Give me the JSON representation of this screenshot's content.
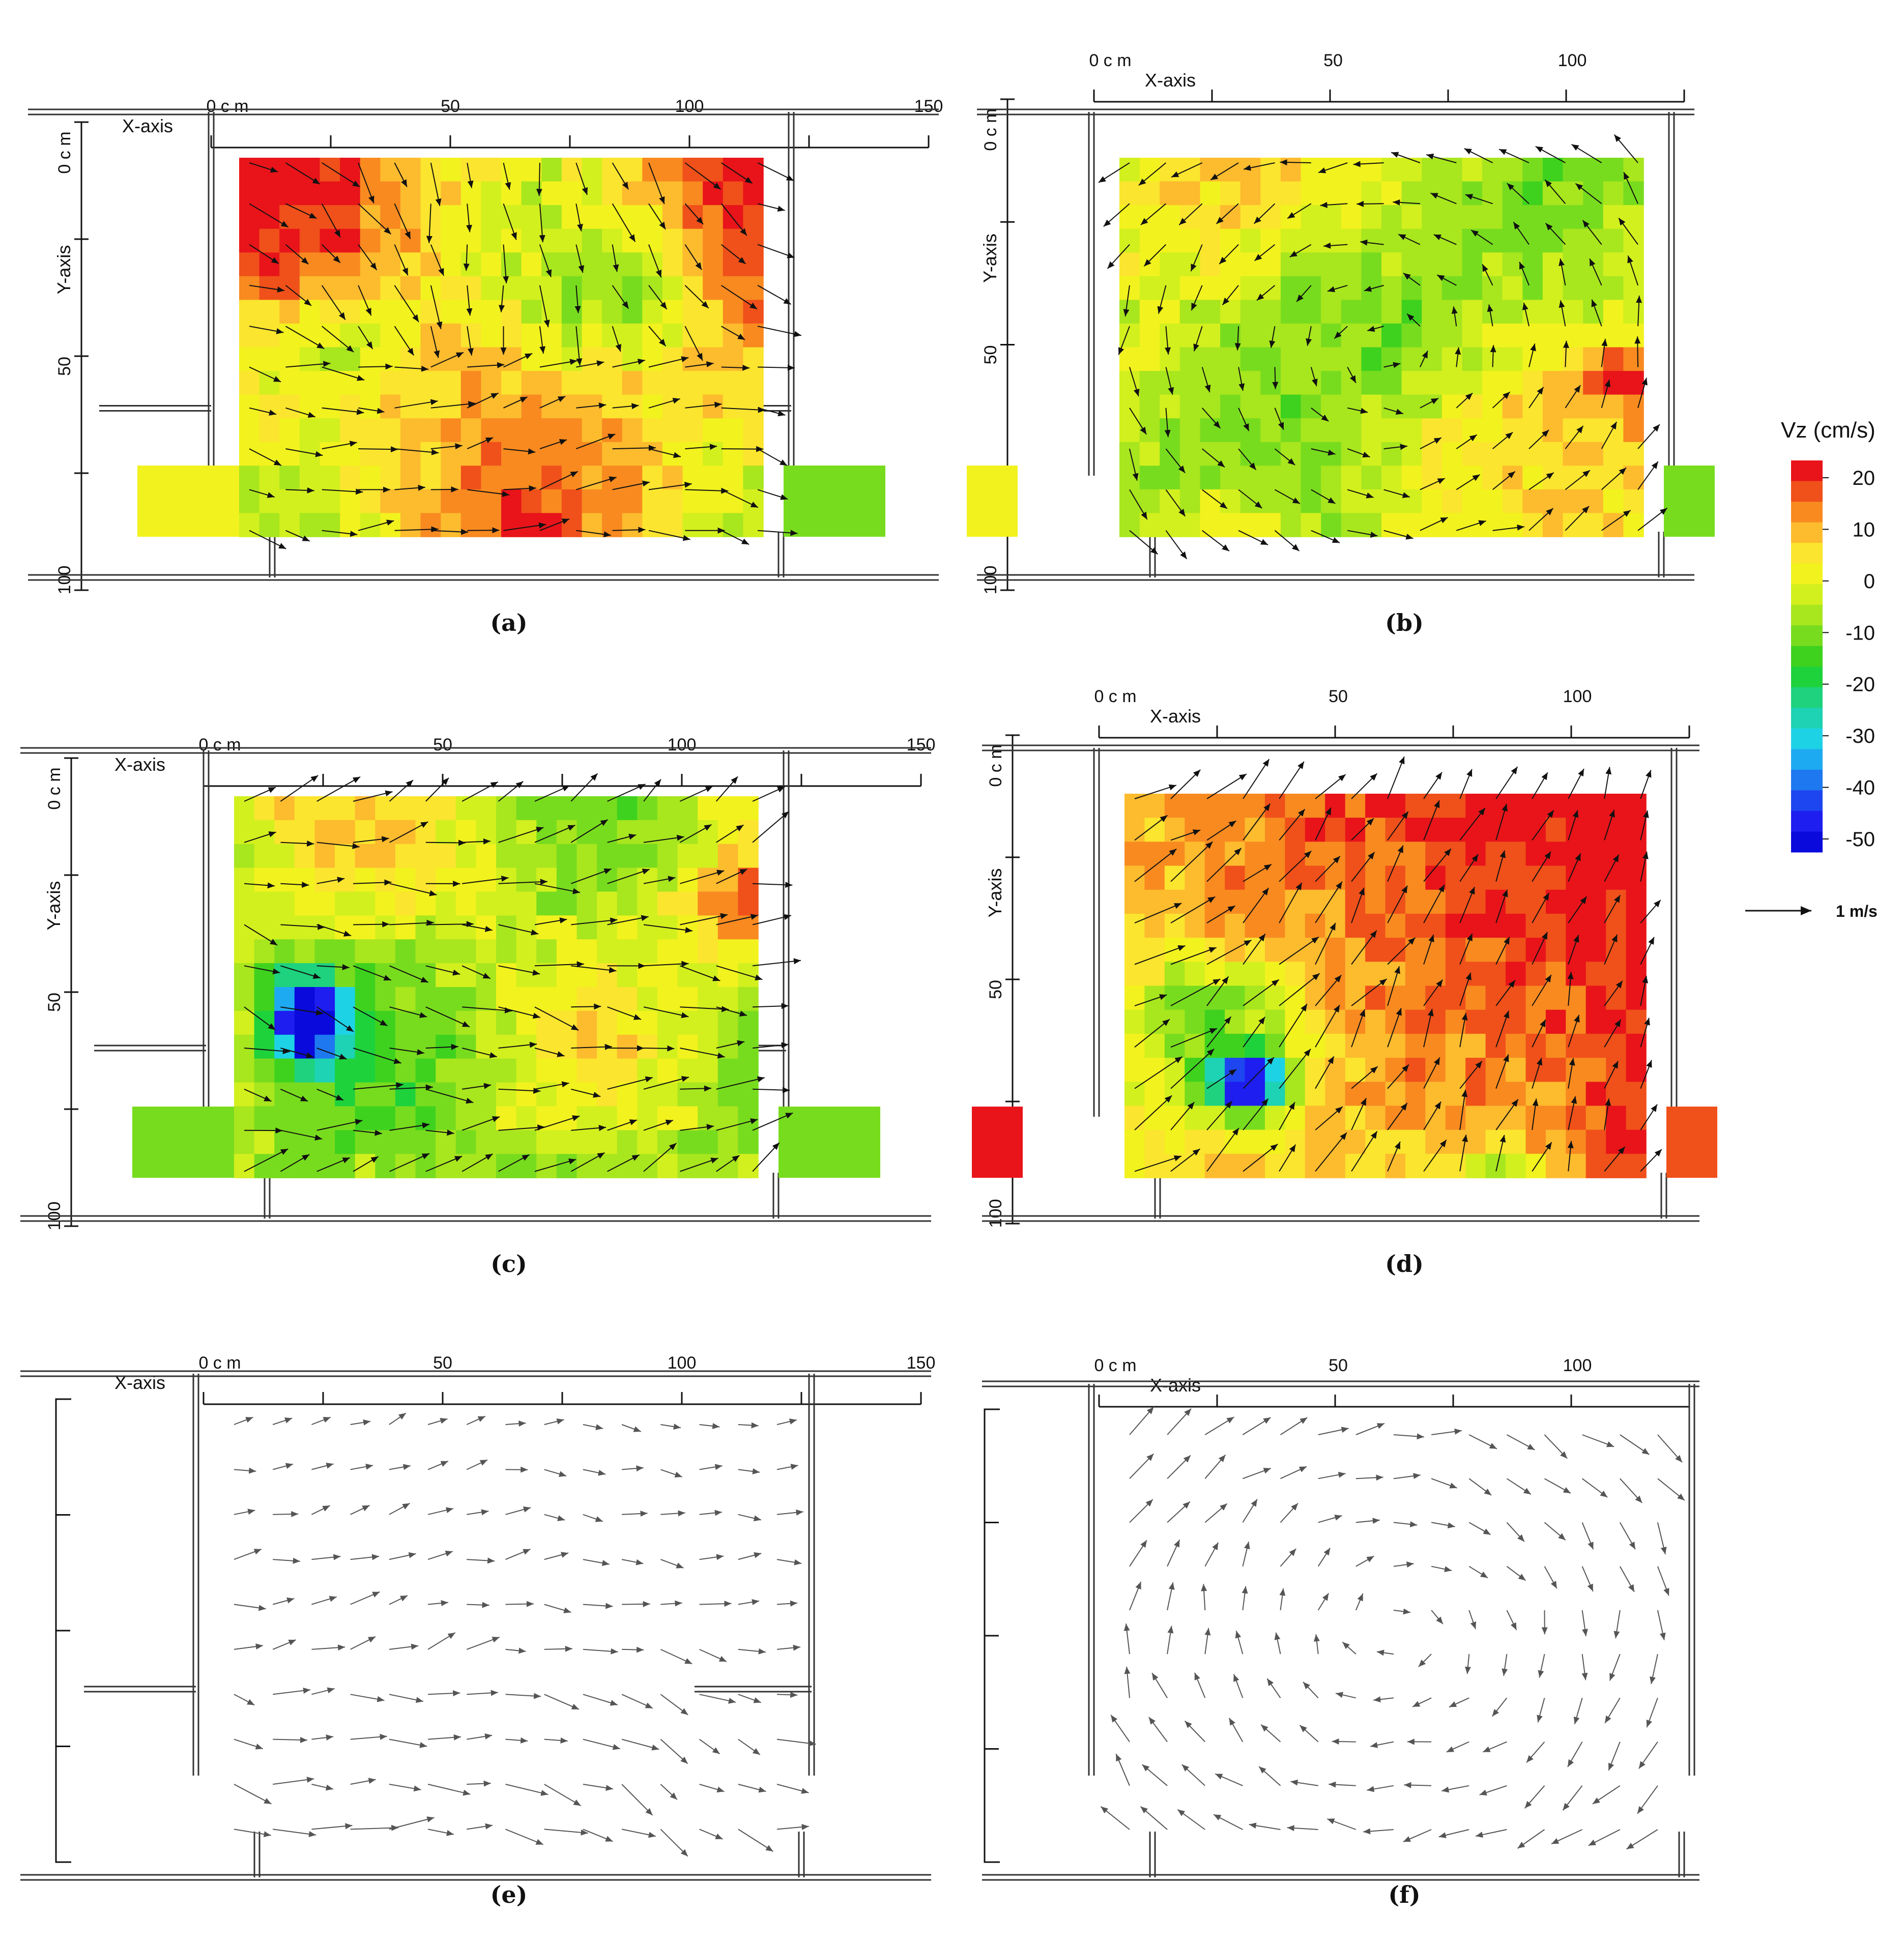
{
  "figure": {
    "colors": {
      "wall": "#333333",
      "arrow": "#111111",
      "arrow_grey": "#555555"
    }
  },
  "legend": {
    "title": "Vz (cm/s)",
    "ticks": [
      "20",
      "10",
      "0",
      "-10",
      "-20",
      "-30",
      "-40",
      "-50"
    ],
    "colors": [
      "#e8141a",
      "#f0501a",
      "#f88a20",
      "#fdbb2e",
      "#fbe52e",
      "#f2f21e",
      "#d2f01e",
      "#a8e61e",
      "#78dc1e",
      "#3ed21e",
      "#1ed23c",
      "#1ed27e",
      "#1ed2b4",
      "#1ed2e6",
      "#1eaaf0",
      "#1e78f0",
      "#1e46f0",
      "#1e1ef0",
      "#0a0adc"
    ],
    "scale_label": "1 m/s"
  },
  "chart_data": [
    {
      "type": "heatmap",
      "panel": "(a)",
      "xlabel": "X-axis",
      "ylabel": "Y-axis",
      "x_ticks": [
        "0 c m",
        "50",
        "100",
        "150"
      ],
      "y_ticks": [
        "0 c m",
        "50",
        "100"
      ],
      "xlim": [
        0,
        150
      ],
      "ylim": [
        0,
        100
      ],
      "z_range": [
        -50,
        20
      ],
      "z_unit": "cm/s",
      "field_summary": "mostly 0 to 10 cm/s (yellow) with -10 to -20 cm/s (green) regions at left and right; arrows indicate velocity vectors"
    },
    {
      "type": "heatmap",
      "panel": "(b)",
      "xlabel": "X-axis",
      "ylabel": "Y-axis",
      "x_ticks": [
        "0 c m",
        "50",
        "100"
      ],
      "y_ticks": [
        "0 c m",
        "50",
        "100"
      ],
      "xlim": [
        0,
        125
      ],
      "ylim": [
        0,
        100
      ],
      "z_range": [
        -50,
        20
      ],
      "z_unit": "cm/s"
    },
    {
      "type": "heatmap",
      "panel": "(c)",
      "xlabel": "X-axis",
      "ylabel": "Y-axis",
      "x_ticks": [
        "0 c m",
        "50",
        "100",
        "150"
      ],
      "y_ticks": [
        "0 c m",
        "50",
        "100"
      ],
      "xlim": [
        0,
        150
      ],
      "ylim": [
        0,
        100
      ],
      "z_range": [
        -50,
        20
      ],
      "z_unit": "cm/s"
    },
    {
      "type": "heatmap",
      "panel": "(d)",
      "xlabel": "X-axis",
      "ylabel": "Y-axis",
      "x_ticks": [
        "0 c m",
        "50",
        "100"
      ],
      "y_ticks": [
        "0 c m",
        "50",
        "100"
      ],
      "xlim": [
        0,
        125
      ],
      "ylim": [
        0,
        100
      ],
      "z_range": [
        -50,
        20
      ],
      "z_unit": "cm/s"
    },
    {
      "type": "scatter",
      "panel": "(e)",
      "xlabel": "X-axis",
      "x_ticks": [
        "0 c m",
        "50",
        "100",
        "150"
      ],
      "xlim": [
        0,
        150
      ],
      "ylim": [
        0,
        100
      ]
    },
    {
      "type": "scatter",
      "panel": "(f)",
      "xlabel": "X-axis",
      "x_ticks": [
        "0 c m",
        "50",
        "100"
      ],
      "xlim": [
        0,
        125
      ],
      "ylim": [
        0,
        100
      ]
    }
  ]
}
